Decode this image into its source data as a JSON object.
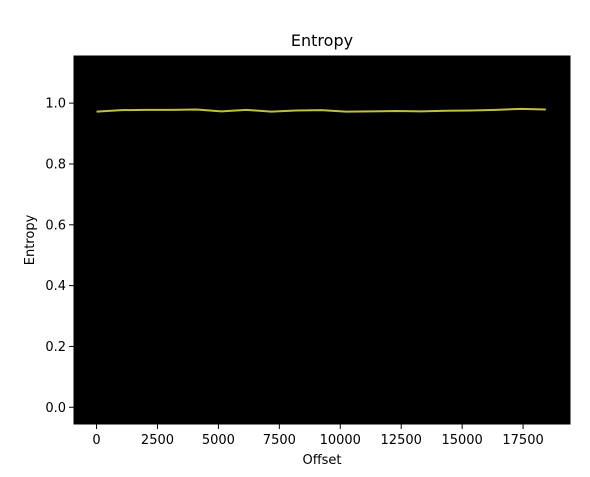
{
  "chart_data": {
    "type": "line",
    "title": "Entropy",
    "xlabel": "Offset",
    "ylabel": "Entropy",
    "xlim": [
      -925,
      19425
    ],
    "ylim": [
      -0.055,
      1.155
    ],
    "xticks": [
      0,
      2500,
      5000,
      7500,
      10000,
      12500,
      15000,
      17500
    ],
    "yticks": [
      0.0,
      0.2,
      0.4,
      0.6,
      0.8,
      1.0
    ],
    "xtick_labels": [
      "0",
      "2500",
      "5000",
      "7500",
      "10000",
      "12500",
      "15000",
      "17500"
    ],
    "ytick_labels": [
      "0.0",
      "0.2",
      "0.4",
      "0.6",
      "0.8",
      "1.0"
    ],
    "grid": false,
    "plot_background": "#000000",
    "line_color": "#bfbf40",
    "series": [
      {
        "x": [
          0,
          1024,
          2048,
          3072,
          4096,
          5120,
          6144,
          7168,
          8192,
          9216,
          10240,
          11264,
          12288,
          13312,
          14336,
          15360,
          16384,
          17408,
          18432
        ],
        "values": [
          0.972,
          0.977,
          0.978,
          0.978,
          0.979,
          0.973,
          0.978,
          0.972,
          0.976,
          0.977,
          0.972,
          0.973,
          0.974,
          0.973,
          0.975,
          0.976,
          0.978,
          0.981,
          0.979
        ]
      }
    ]
  }
}
